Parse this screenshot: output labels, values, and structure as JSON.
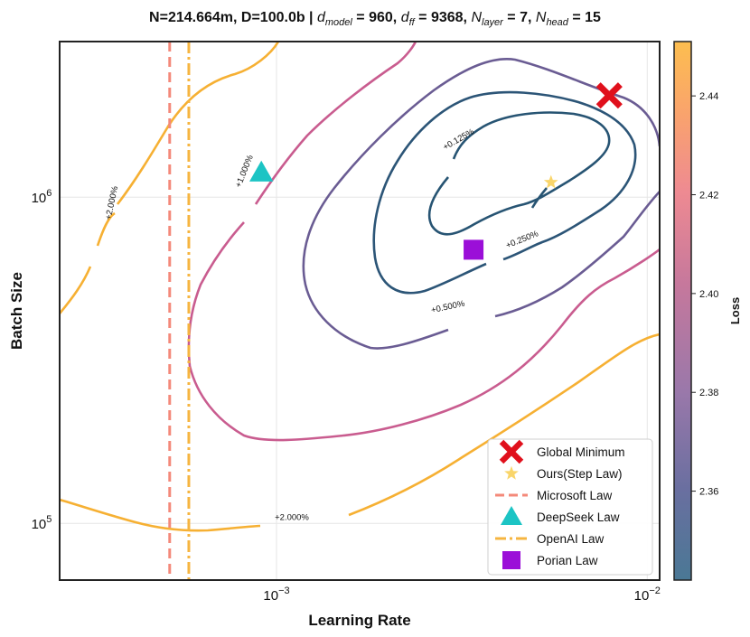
{
  "chart_data": {
    "type": "contour",
    "title_plain": "N=214.664m, D=100.0b | ",
    "title_parts": [
      {
        "sym": "d",
        "sub": "model",
        "val": "960"
      },
      {
        "sym": "d",
        "sub": "ff",
        "val": "9368"
      },
      {
        "sym": "N",
        "sub": "layer",
        "val": "7"
      },
      {
        "sym": "N",
        "sub": "head",
        "val": "15"
      }
    ],
    "xlabel": "Learning Rate",
    "ylabel": "Batch Size",
    "xscale": "log",
    "yscale": "log",
    "xlim": [
      0.00026,
      0.0108
    ],
    "ylim": [
      67000,
      3000000
    ],
    "xticks": [
      {
        "value": 0.001,
        "base": "10",
        "exp": "−3"
      },
      {
        "value": 0.01,
        "base": "10",
        "exp": "−2"
      }
    ],
    "yticks": [
      {
        "value": 100000,
        "base": "10",
        "exp": "5"
      },
      {
        "value": 1000000,
        "base": "10",
        "exp": "6"
      }
    ],
    "colorbar": {
      "label": "Loss",
      "range": [
        2.342,
        2.451
      ],
      "ticks": [
        "2.36",
        "2.38",
        "2.40",
        "2.42",
        "2.44"
      ],
      "tick_values": [
        2.36,
        2.38,
        2.4,
        2.42,
        2.44
      ],
      "colors": [
        "#4a7895",
        "#6a6fa0",
        "#9a78aa",
        "#c6789c",
        "#ee8a92",
        "#f9a26e",
        "#fdbe4f"
      ]
    },
    "contours": [
      {
        "label": "+0.125%",
        "color": "#275473",
        "label_at": [
          0.0031,
          1500000
        ],
        "label_angle": -30
      },
      {
        "label": "+0.250%",
        "color": "#2c5577",
        "label_at": [
          0.0046,
          740000
        ],
        "label_angle": -22
      },
      {
        "label": "+0.500%",
        "color": "#6a5c93",
        "label_at": [
          0.0029,
          460000
        ],
        "label_angle": -12
      },
      {
        "label": "+1.000%",
        "color": "#c95c8f",
        "label_at": [
          0.00082,
          1200000
        ],
        "label_angle": -68
      },
      {
        "label": "+2.000%",
        "color": "#f6b033",
        "label_at": [
          0.00036,
          960000
        ],
        "label_angle": -78
      },
      {
        "label": "+2.000%",
        "color": "#f6b033",
        "label_at": [
          0.0011,
          104000
        ],
        "label_angle": 0
      }
    ],
    "vlines": [
      {
        "name": "Microsoft Law",
        "x": 0.000515,
        "color": "#f4897a",
        "style": "dashed"
      },
      {
        "name": "OpenAI Law",
        "x": 0.00058,
        "color": "#f6b540",
        "style": "dashdot"
      }
    ],
    "points": [
      {
        "name": "Global Minimum",
        "x": 0.0079,
        "y": 2050000,
        "marker": "x",
        "color": "#e0101c"
      },
      {
        "name": "Ours(Step Law)",
        "x": 0.0055,
        "y": 1110000,
        "marker": "star",
        "color": "#f9d56a"
      },
      {
        "name": "DeepSeek Law",
        "x": 0.00091,
        "y": 1190000,
        "marker": "triangle",
        "color": "#1cc4c4"
      },
      {
        "name": "Porian Law",
        "x": 0.0034,
        "y": 690000,
        "marker": "square",
        "color": "#9b0fd8"
      }
    ],
    "legend": [
      {
        "label": "Global Minimum",
        "marker": "x",
        "color": "#e0101c"
      },
      {
        "label": "Ours(Step Law)",
        "marker": "star",
        "color": "#f9d56a"
      },
      {
        "label": "Microsoft Law",
        "marker": "dashed",
        "color": "#f4897a"
      },
      {
        "label": "DeepSeek Law",
        "marker": "triangle",
        "color": "#1cc4c4"
      },
      {
        "label": "OpenAI Law",
        "marker": "dashdot",
        "color": "#f6b540"
      },
      {
        "label": "Porian Law",
        "marker": "square",
        "color": "#9b0fd8"
      }
    ],
    "legend_position": "lower-right"
  }
}
